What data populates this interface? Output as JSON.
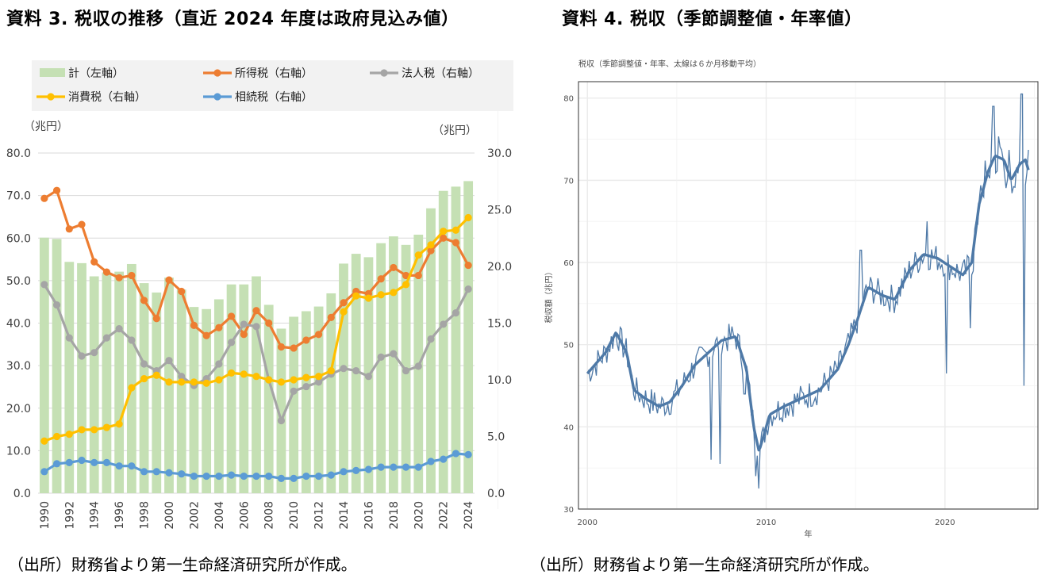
{
  "left": {
    "title": "資料 3.  税収の推移（直近 2024 年度は政府見込み値）",
    "source": "（出所）財務省より第一生命経済研究所が作成。",
    "chart_data": {
      "type": "bar+line",
      "title": "税収の推移（直近 2024 年度は政府見込み値）",
      "left_axis_label": "（兆円）",
      "right_axis_label": "（兆円）",
      "left_ticks": [
        "0.0",
        "10.0",
        "20.0",
        "30.0",
        "40.0",
        "50.0",
        "60.0",
        "70.0",
        "80.0"
      ],
      "right_ticks": [
        "0.0",
        "5.0",
        "10.0",
        "15.0",
        "20.0",
        "25.0",
        "30.0"
      ],
      "ylim_left": [
        0,
        80
      ],
      "ylim_right": [
        0,
        30
      ],
      "x": [
        1990,
        1991,
        1992,
        1993,
        1994,
        1995,
        1996,
        1997,
        1998,
        1999,
        2000,
        2001,
        2002,
        2003,
        2004,
        2005,
        2006,
        2007,
        2008,
        2009,
        2010,
        2011,
        2012,
        2013,
        2014,
        2015,
        2016,
        2017,
        2018,
        2019,
        2020,
        2021,
        2022,
        2023,
        2024
      ],
      "x_tick_labels": [
        "1990",
        "1992",
        "1994",
        "1996",
        "1998",
        "2000",
        "2002",
        "2004",
        "2006",
        "2008",
        "2010",
        "2012",
        "2014",
        "2016",
        "2018",
        "2020",
        "2022",
        "2024"
      ],
      "bar_series": {
        "name": "計（左軸）",
        "color": "#c5e0b4",
        "values": [
          60.1,
          59.8,
          54.4,
          54.1,
          51.0,
          51.9,
          52.1,
          53.9,
          49.4,
          47.2,
          50.7,
          47.9,
          43.8,
          43.3,
          45.6,
          49.1,
          49.1,
          51.0,
          44.3,
          38.7,
          41.5,
          42.8,
          43.9,
          47.0,
          54.0,
          56.3,
          55.5,
          58.8,
          60.4,
          58.4,
          60.8,
          67.0,
          71.1,
          72.1,
          73.4
        ]
      },
      "line_series": [
        {
          "name": "所得税（右軸）",
          "color": "#ed7d31",
          "values": [
            26.0,
            26.7,
            23.3,
            23.7,
            20.4,
            19.5,
            19.0,
            19.2,
            17.0,
            15.4,
            18.8,
            17.8,
            14.8,
            13.9,
            14.6,
            15.6,
            14.0,
            16.1,
            15.0,
            12.9,
            12.8,
            13.5,
            14.0,
            15.5,
            16.8,
            17.8,
            17.6,
            18.9,
            19.9,
            19.2,
            19.2,
            21.4,
            22.5,
            22.1,
            20.1
          ]
        },
        {
          "name": "法人税（右軸）",
          "color": "#a5a5a5",
          "values": [
            18.4,
            16.6,
            13.7,
            12.1,
            12.4,
            13.7,
            14.5,
            13.5,
            11.4,
            10.8,
            11.7,
            10.3,
            9.5,
            10.1,
            11.4,
            13.3,
            14.9,
            14.7,
            10.0,
            6.4,
            9.0,
            9.4,
            9.8,
            10.5,
            11.0,
            10.8,
            10.3,
            12.0,
            12.3,
            10.8,
            11.2,
            13.6,
            14.9,
            15.9,
            18.0
          ]
        },
        {
          "name": "消費税（右軸）",
          "color": "#ffc000",
          "values": [
            4.6,
            5.0,
            5.2,
            5.6,
            5.6,
            5.8,
            6.1,
            9.3,
            10.1,
            10.4,
            9.8,
            9.8,
            9.8,
            9.7,
            10.0,
            10.6,
            10.5,
            10.3,
            10.0,
            9.8,
            10.0,
            10.2,
            10.3,
            10.8,
            16.0,
            17.4,
            17.2,
            17.5,
            17.7,
            18.4,
            21.0,
            21.9,
            23.1,
            23.2,
            24.3
          ]
        },
        {
          "name": "相続税（右軸）",
          "color": "#5b9bd5",
          "values": [
            1.9,
            2.6,
            2.7,
            2.9,
            2.7,
            2.7,
            2.4,
            2.4,
            1.9,
            1.9,
            1.8,
            1.7,
            1.5,
            1.5,
            1.5,
            1.6,
            1.5,
            1.5,
            1.5,
            1.3,
            1.3,
            1.5,
            1.5,
            1.6,
            1.9,
            2.0,
            2.1,
            2.3,
            2.3,
            2.3,
            2.3,
            2.8,
            3.0,
            3.5,
            3.4
          ]
        }
      ]
    }
  },
  "right": {
    "title": "資料 4. 税収（季節調整値・年率値）",
    "source": "（出所）財務省より第一生命経済研究所が作成。",
    "chart_data": {
      "type": "line",
      "title": "税収（季節調整値・年率、太線は６か月移動平均）",
      "xlabel": "年",
      "ylabel": "税収額（兆円）",
      "xlim": [
        1999.5,
        2025.2
      ],
      "ylim": [
        30,
        82
      ],
      "x_ticks": [
        "2000",
        "2010",
        "2020"
      ],
      "y_ticks": [
        "30",
        "40",
        "50",
        "60",
        "70",
        "80"
      ],
      "color": "#4e79a7",
      "ma_anchors": [
        [
          2000,
          46.5
        ],
        [
          2001,
          49
        ],
        [
          2001.6,
          51.5
        ],
        [
          2002.2,
          49
        ],
        [
          2002.6,
          44.5
        ],
        [
          2003.2,
          43.5
        ],
        [
          2004,
          42.5
        ],
        [
          2004.6,
          43
        ],
        [
          2005.3,
          45
        ],
        [
          2006,
          47.5
        ],
        [
          2007,
          49.5
        ],
        [
          2007.5,
          50.5
        ],
        [
          2008.3,
          51
        ],
        [
          2008.9,
          47
        ],
        [
          2009.3,
          40
        ],
        [
          2009.6,
          37
        ],
        [
          2010.2,
          41.5
        ],
        [
          2011,
          42.5
        ],
        [
          2012,
          43.5
        ],
        [
          2013,
          44.5
        ],
        [
          2014,
          47
        ],
        [
          2014.6,
          50
        ],
        [
          2015.1,
          53
        ],
        [
          2015.7,
          57
        ],
        [
          2016.5,
          56
        ],
        [
          2017.2,
          55.5
        ],
        [
          2018,
          59
        ],
        [
          2018.8,
          61
        ],
        [
          2019.6,
          60.5
        ],
        [
          2020.3,
          59.5
        ],
        [
          2021,
          58.5
        ],
        [
          2021.5,
          60
        ],
        [
          2021.9,
          67
        ],
        [
          2022.4,
          71
        ],
        [
          2022.8,
          73
        ],
        [
          2023.3,
          72.5
        ],
        [
          2023.7,
          70
        ],
        [
          2024.2,
          72
        ],
        [
          2024.5,
          72.5
        ],
        [
          2024.7,
          71
        ]
      ]
    }
  }
}
